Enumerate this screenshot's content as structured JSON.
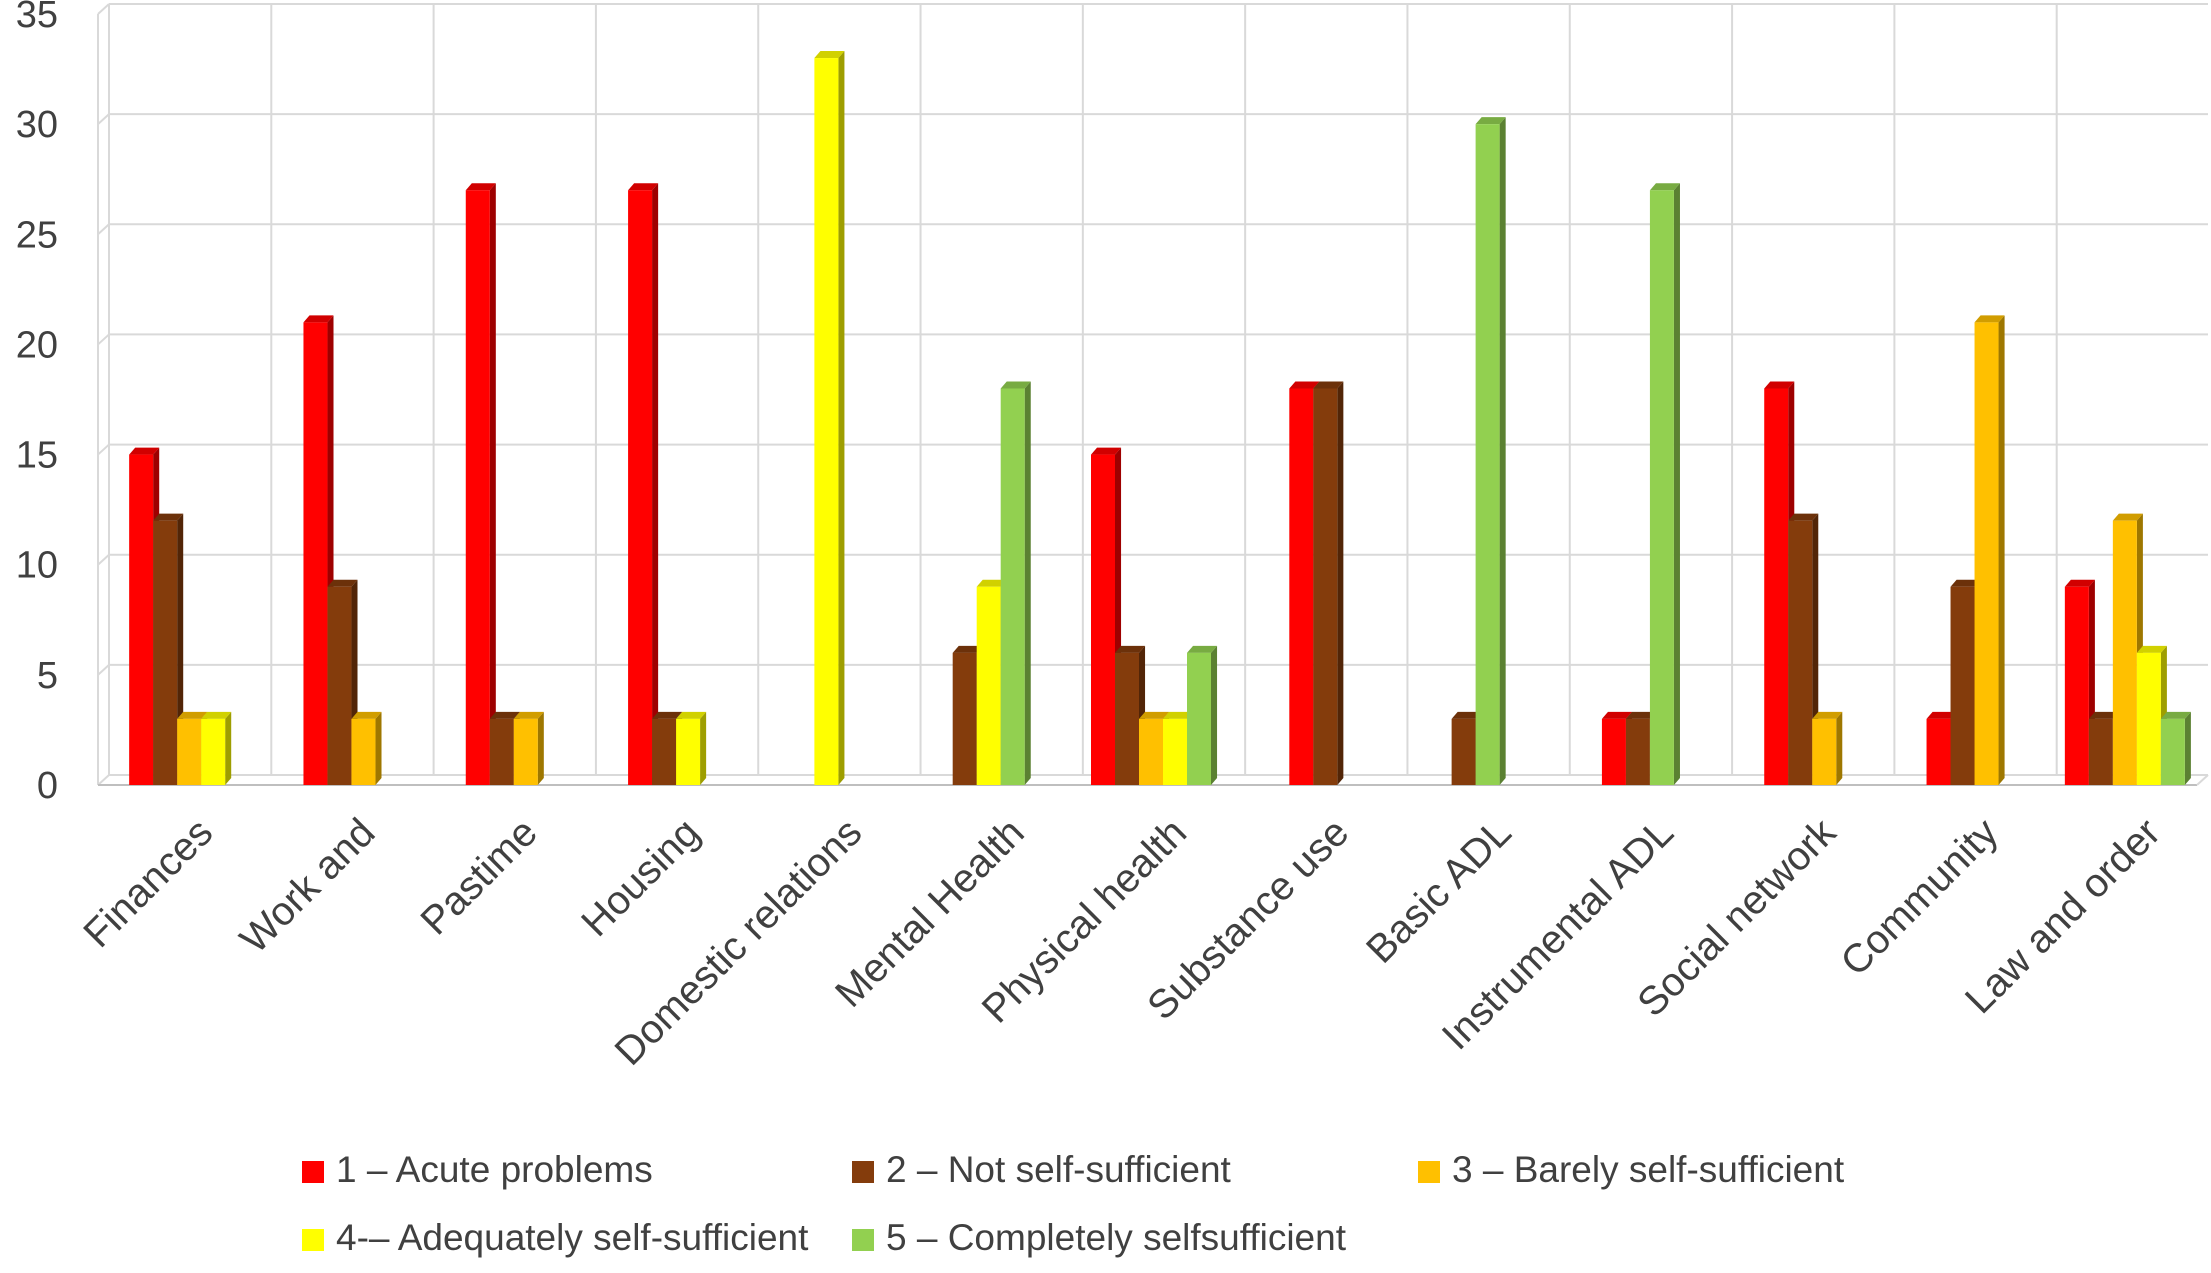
{
  "chart_data": {
    "type": "bar",
    "categories": [
      "Finances",
      "Work and",
      "Pastime",
      "Housing",
      "Domestic relations",
      "Mental Health",
      "Physical health",
      "Substance use",
      "Basic ADL",
      "Instrumental ADL",
      "Social network",
      "Community",
      "Law and order"
    ],
    "series": [
      {
        "name": "1 – Acute problems",
        "color": "#ff0000",
        "values": [
          15,
          21,
          27,
          27,
          0,
          0,
          15,
          18,
          0,
          3,
          18,
          3,
          9
        ]
      },
      {
        "name": "2 – Not self-sufficient",
        "color": "#843c0c",
        "values": [
          12,
          9,
          3,
          3,
          0,
          6,
          6,
          18,
          3,
          3,
          12,
          9,
          3
        ]
      },
      {
        "name": "3 – Barely self-sufficient",
        "color": "#ffc000",
        "values": [
          3,
          3,
          3,
          0,
          0,
          0,
          3,
          0,
          0,
          0,
          3,
          21,
          12
        ]
      },
      {
        "name": "4-– Adequately self-sufficient",
        "color": "#ffff00",
        "values": [
          3,
          0,
          0,
          3,
          33,
          9,
          3,
          0,
          0,
          0,
          0,
          0,
          6
        ]
      },
      {
        "name": "5 – Completely selfsufficient",
        "color": "#92d050",
        "values": [
          0,
          0,
          0,
          0,
          0,
          18,
          6,
          0,
          30,
          27,
          0,
          0,
          3
        ]
      }
    ],
    "yticks": [
      0,
      5,
      10,
      15,
      20,
      25,
      30,
      35
    ],
    "ylim": [
      0,
      35
    ],
    "grid": true,
    "legend_position": "bottom",
    "title": "",
    "xlabel": "",
    "ylabel": ""
  }
}
